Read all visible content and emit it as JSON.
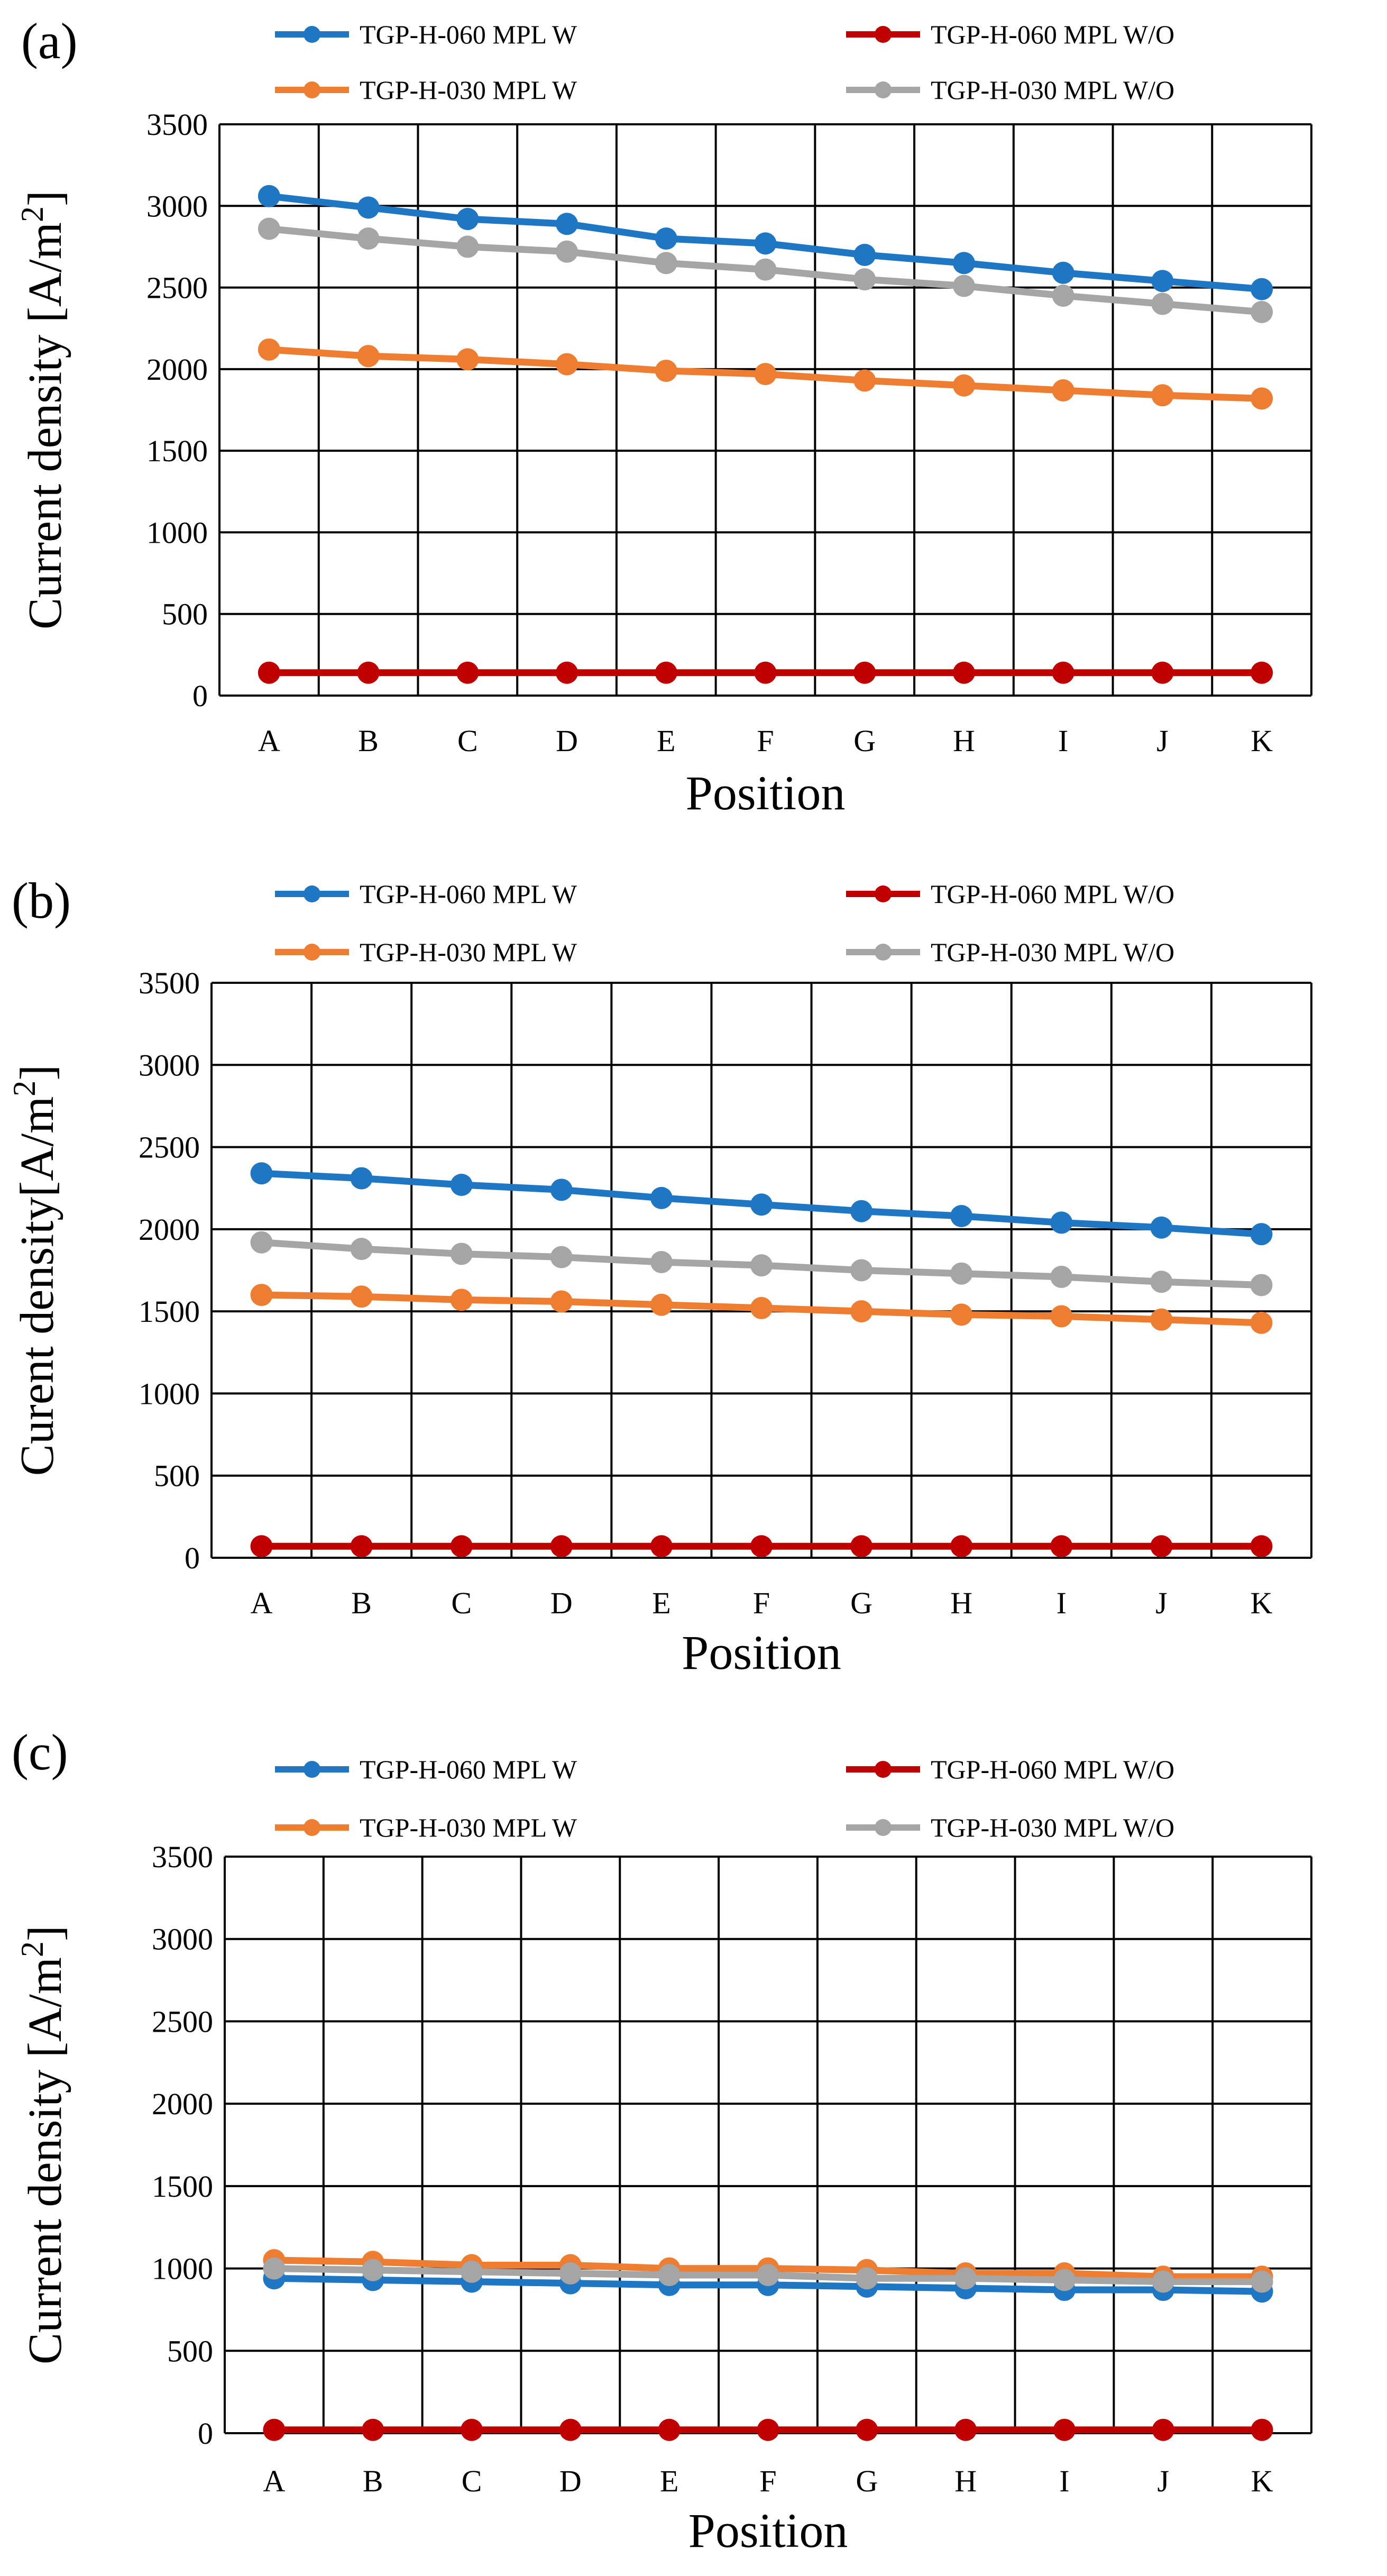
{
  "colors": {
    "blue": "#1f77c4",
    "red": "#c00000",
    "orange": "#ed7d31",
    "gray": "#a5a5a5"
  },
  "chart_data": [
    {
      "panel_label": "(a)",
      "type": "line",
      "categories": [
        "A",
        "B",
        "C",
        "D",
        "E",
        "F",
        "G",
        "H",
        "I",
        "J",
        "K"
      ],
      "xlabel": "Position",
      "ylabel_main": "Current density [A/m",
      "ylabel_sup": "2",
      "ylabel_end": "]",
      "ylim": [
        0,
        3500
      ],
      "yticks": [
        "0",
        "500",
        "1000",
        "1500",
        "2000",
        "2500",
        "3000",
        "3500"
      ],
      "legend": [
        "TGP-H-060 MPL W",
        "TGP-H-060 MPL W/O",
        "TGP-H-030 MPL W",
        "TGP-H-030 MPL W/O"
      ],
      "series": [
        {
          "name": "TGP-H-060 MPL W",
          "color": "#1f77c4",
          "values": [
            3060,
            2990,
            2920,
            2890,
            2800,
            2770,
            2700,
            2650,
            2590,
            2540,
            2490
          ]
        },
        {
          "name": "TGP-H-060 MPL W/O",
          "color": "#c00000",
          "values": [
            140,
            140,
            140,
            140,
            140,
            140,
            140,
            140,
            140,
            140,
            140
          ]
        },
        {
          "name": "TGP-H-030 MPL W",
          "color": "#ed7d31",
          "values": [
            2120,
            2080,
            2060,
            2030,
            1990,
            1970,
            1930,
            1900,
            1870,
            1840,
            1820
          ]
        },
        {
          "name": "TGP-H-030 MPL W/O",
          "color": "#a5a5a5",
          "values": [
            2860,
            2800,
            2750,
            2720,
            2650,
            2610,
            2550,
            2510,
            2450,
            2400,
            2350
          ]
        }
      ]
    },
    {
      "panel_label": "(b)",
      "type": "line",
      "categories": [
        "A",
        "B",
        "C",
        "D",
        "E",
        "F",
        "G",
        "H",
        "I",
        "J",
        "K"
      ],
      "xlabel": "Position",
      "ylabel_main": "Curent density[A/m",
      "ylabel_sup": "2",
      "ylabel_end": "]",
      "ylim": [
        0,
        3500
      ],
      "yticks": [
        "0",
        "500",
        "1000",
        "1500",
        "2000",
        "2500",
        "3000",
        "3500"
      ],
      "legend": [
        "TGP-H-060 MPL W",
        "TGP-H-060 MPL W/O",
        "TGP-H-030 MPL W",
        "TGP-H-030 MPL W/O"
      ],
      "series": [
        {
          "name": "TGP-H-060 MPL W",
          "color": "#1f77c4",
          "values": [
            2340,
            2310,
            2270,
            2240,
            2190,
            2150,
            2110,
            2080,
            2040,
            2010,
            1970
          ]
        },
        {
          "name": "TGP-H-060 MPL W/O",
          "color": "#c00000",
          "values": [
            70,
            70,
            70,
            70,
            70,
            70,
            70,
            70,
            70,
            70,
            70
          ]
        },
        {
          "name": "TGP-H-030 MPL W",
          "color": "#ed7d31",
          "values": [
            1600,
            1590,
            1570,
            1560,
            1540,
            1520,
            1500,
            1480,
            1470,
            1450,
            1430
          ]
        },
        {
          "name": "TGP-H-030 MPL W/O",
          "color": "#a5a5a5",
          "values": [
            1920,
            1880,
            1850,
            1830,
            1800,
            1780,
            1750,
            1730,
            1710,
            1680,
            1660
          ]
        }
      ]
    },
    {
      "panel_label": "(c)",
      "type": "line",
      "categories": [
        "A",
        "B",
        "C",
        "D",
        "E",
        "F",
        "G",
        "H",
        "I",
        "J",
        "K"
      ],
      "xlabel": "Position",
      "ylabel_main": "Current density [A/m",
      "ylabel_sup": "2",
      "ylabel_end": "]",
      "ylim": [
        0,
        3500
      ],
      "yticks": [
        "0",
        "500",
        "1000",
        "1500",
        "2000",
        "2500",
        "3000",
        "3500"
      ],
      "legend": [
        "TGP-H-060 MPL W",
        "TGP-H-060 MPL W/O",
        "TGP-H-030 MPL W",
        "TGP-H-030 MPL W/O"
      ],
      "series": [
        {
          "name": "TGP-H-060 MPL W",
          "color": "#1f77c4",
          "values": [
            940,
            930,
            920,
            910,
            900,
            900,
            890,
            880,
            870,
            870,
            860
          ]
        },
        {
          "name": "TGP-H-060 MPL W/O",
          "color": "#c00000",
          "values": [
            20,
            20,
            20,
            20,
            20,
            20,
            20,
            20,
            20,
            20,
            20
          ]
        },
        {
          "name": "TGP-H-030 MPL W",
          "color": "#ed7d31",
          "values": [
            1050,
            1040,
            1020,
            1020,
            1000,
            1000,
            990,
            970,
            970,
            950,
            950
          ]
        },
        {
          "name": "TGP-H-030 MPL W/O",
          "color": "#a5a5a5",
          "values": [
            1000,
            990,
            980,
            970,
            960,
            960,
            940,
            940,
            930,
            920,
            920
          ]
        }
      ]
    }
  ]
}
